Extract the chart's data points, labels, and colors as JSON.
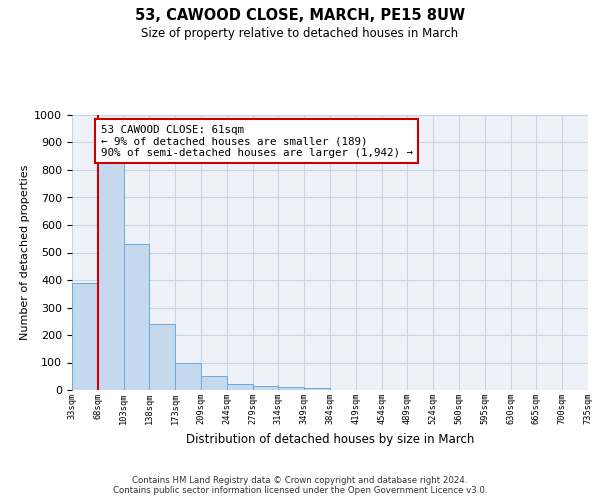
{
  "title": "53, CAWOOD CLOSE, MARCH, PE15 8UW",
  "subtitle": "Size of property relative to detached houses in March",
  "xlabel": "Distribution of detached houses by size in March",
  "ylabel": "Number of detached properties",
  "bar_values": [
    390,
    830,
    530,
    240,
    97,
    52,
    22,
    15,
    10,
    8,
    0,
    0,
    0,
    0,
    0,
    0,
    0,
    0,
    0,
    0
  ],
  "categories": [
    "33sqm",
    "68sqm",
    "103sqm",
    "138sqm",
    "173sqm",
    "209sqm",
    "244sqm",
    "279sqm",
    "314sqm",
    "349sqm",
    "384sqm",
    "419sqm",
    "454sqm",
    "489sqm",
    "524sqm",
    "560sqm",
    "595sqm",
    "630sqm",
    "665sqm",
    "700sqm",
    "735sqm"
  ],
  "bar_color": "#c5d9ee",
  "bar_edge_color": "#6aaad4",
  "annotation_box_color": "#cc0000",
  "annotation_text": "53 CAWOOD CLOSE: 61sqm\n← 9% of detached houses are smaller (189)\n90% of semi-detached houses are larger (1,942) →",
  "ylim": [
    0,
    1000
  ],
  "yticks": [
    0,
    100,
    200,
    300,
    400,
    500,
    600,
    700,
    800,
    900,
    1000
  ],
  "footer": "Contains HM Land Registry data © Crown copyright and database right 2024.\nContains public sector information licensed under the Open Government Licence v3.0.",
  "grid_color": "#c8d4e8",
  "plot_background": "#eef2f8"
}
